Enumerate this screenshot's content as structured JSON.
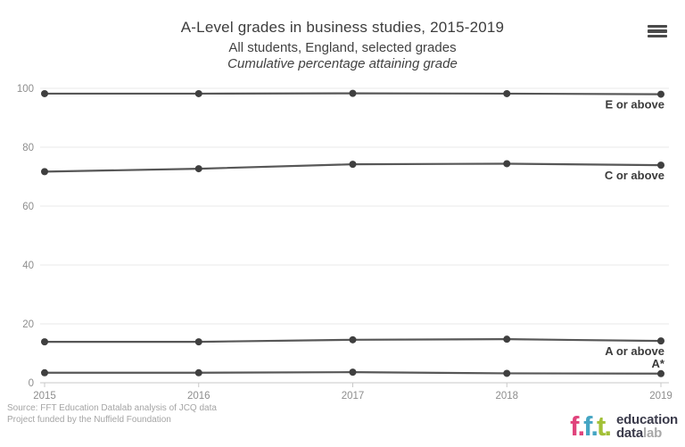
{
  "header": {
    "title": "A-Level grades in business studies, 2015-2019",
    "subtitle": "All students, England, selected grades",
    "subtitle_italic": "Cumulative percentage attaining grade",
    "menu_icon": "hamburger-menu-icon"
  },
  "chart_data": {
    "type": "line",
    "title": "A-Level grades in business studies, 2015-2019",
    "subtitle": "All students, England, selected grades",
    "ylabel": "Cumulative percentage attaining grade",
    "x": [
      "2015",
      "2016",
      "2017",
      "2018",
      "2019"
    ],
    "series": [
      {
        "name": "E or above",
        "values": [
          98.2,
          98.2,
          98.3,
          98.2,
          98.0
        ],
        "label_position": "below"
      },
      {
        "name": "C or above",
        "values": [
          71.7,
          72.7,
          74.2,
          74.4,
          73.9
        ],
        "label_position": "below"
      },
      {
        "name": "A or above",
        "values": [
          13.9,
          13.9,
          14.6,
          14.8,
          14.2
        ],
        "label_position": "below"
      },
      {
        "name": "A*",
        "values": [
          3.4,
          3.4,
          3.6,
          3.2,
          3.1
        ],
        "label_position": "above"
      }
    ],
    "ylim": [
      0,
      100
    ],
    "yticks": [
      0,
      20,
      40,
      60,
      80,
      100
    ],
    "grid": true,
    "legend_position": "end-of-line",
    "colors": {
      "line": "#575757",
      "dot": "#3f3f3f",
      "grid": "#e9e9e9",
      "axis": "#c9c9c9",
      "tick_label": "#8e8e8e",
      "series_label": "#3b3b3b"
    }
  },
  "footer": {
    "source_line1": "Source: FFT Education Datalab analysis of JCQ data",
    "source_line2": "Project funded by the Nuffield Foundation"
  },
  "logo": {
    "letters": [
      {
        "text": "f.",
        "color": "#e0437c"
      },
      {
        "text": "f.",
        "color": "#45a5c3"
      },
      {
        "text": "t.",
        "color": "#a2c037"
      }
    ],
    "line1": "education",
    "line2_bold": "data",
    "line2_light": "lab",
    "text_color": "#3b3b4b",
    "light_color": "#a8a8a8"
  }
}
